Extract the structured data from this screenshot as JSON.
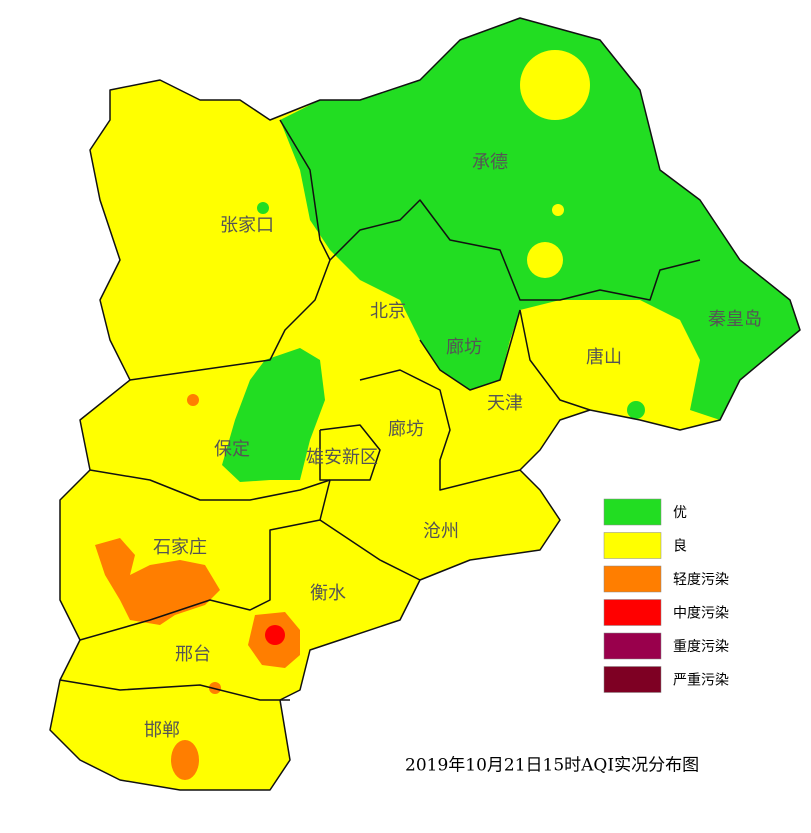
{
  "map": {
    "labels": [
      "张家口",
      "承德",
      "北京",
      "廊坊",
      "秦皇岛",
      "唐山",
      "天津",
      "廊坊",
      "保定",
      "雄安新区",
      "沧州",
      "石家庄",
      "衡水",
      "邢台",
      "邯郸"
    ],
    "legend": [
      {
        "label": "优",
        "color": "#22dd22"
      },
      {
        "label": "良",
        "color": "#ffff00"
      },
      {
        "label": "轻度污染",
        "color": "#ff7e00"
      },
      {
        "label": "中度污染",
        "color": "#ff0000"
      },
      {
        "label": "重度污染",
        "color": "#99004c"
      },
      {
        "label": "严重污染",
        "color": "#7e0023"
      }
    ],
    "caption": "2019年10月21日15时AQI实况分布图"
  }
}
